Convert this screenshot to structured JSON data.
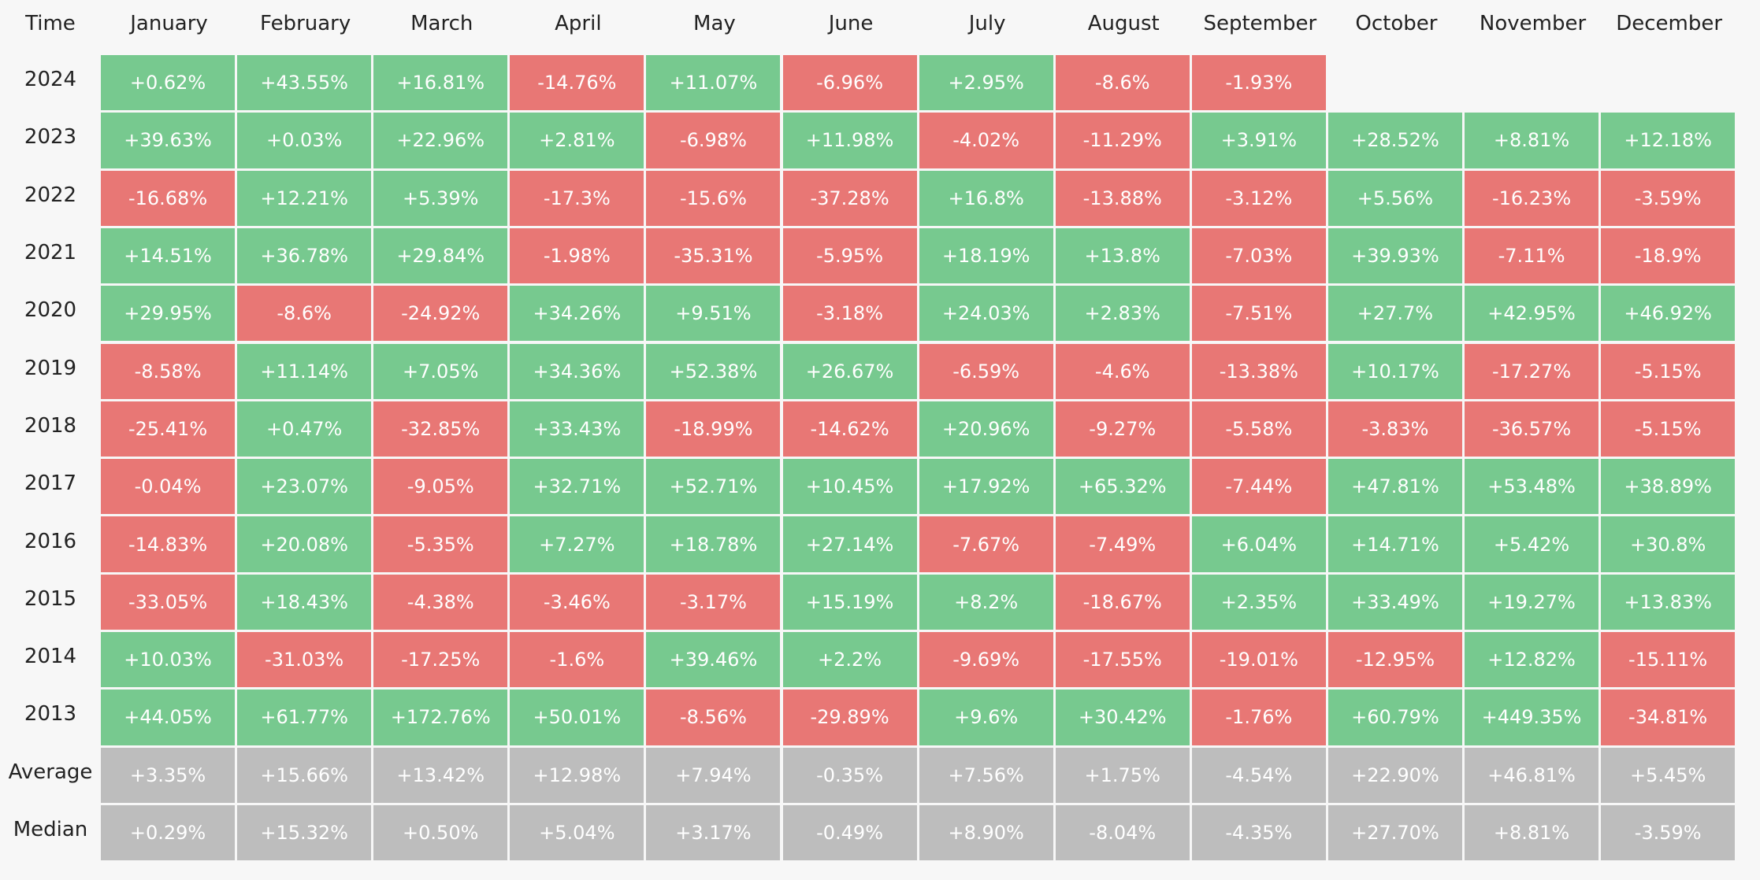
{
  "table": {
    "columns": [
      "Time",
      "January",
      "February",
      "March",
      "April",
      "May",
      "June",
      "July",
      "August",
      "September",
      "October",
      "November",
      "December"
    ],
    "rows": [
      [
        "2024",
        "+0.62%",
        "+43.55%",
        "+16.81%",
        "-14.76%",
        "+11.07%",
        "-6.96%",
        "+2.95%",
        "-8.6%",
        "-1.93%"
      ],
      [
        "2023",
        "+39.63%",
        "+0.03%",
        "+22.96%",
        "+2.81%",
        "-6.98%",
        "+11.98%",
        "-4.02%",
        "-11.29%",
        "+3.91%",
        "+28.52%",
        "+8.81%",
        "+12.18%"
      ],
      [
        "2022",
        "-16.68%",
        "+12.21%",
        "+5.39%",
        "-17.3%",
        "-15.6%",
        "-37.28%",
        "+16.8%",
        "-13.88%",
        "-3.12%",
        "+5.56%",
        "-16.23%",
        "-3.59%"
      ],
      [
        "2021",
        "+14.51%",
        "+36.78%",
        "+29.84%",
        "-1.98%",
        "-35.31%",
        "-5.95%",
        "+18.19%",
        "+13.8%",
        "-7.03%",
        "+39.93%",
        "-7.11%",
        "-18.9%"
      ],
      [
        "2020",
        "+29.95%",
        "-8.6%",
        "-24.92%",
        "+34.26%",
        "+9.51%",
        "-3.18%",
        "+24.03%",
        "+2.83%",
        "-7.51%",
        "+27.7%",
        "+42.95%",
        "+46.92%"
      ],
      [
        "2019",
        "-8.58%",
        "+11.14%",
        "+7.05%",
        "+34.36%",
        "+52.38%",
        "+26.67%",
        "-6.59%",
        "-4.6%",
        "-13.38%",
        "+10.17%",
        "-17.27%",
        "-5.15%"
      ],
      [
        "2018",
        "-25.41%",
        "+0.47%",
        "-32.85%",
        "+33.43%",
        "-18.99%",
        "-14.62%",
        "+20.96%",
        "-9.27%",
        "-5.58%",
        "-3.83%",
        "-36.57%",
        "-5.15%"
      ],
      [
        "2017",
        "-0.04%",
        "+23.07%",
        "-9.05%",
        "+32.71%",
        "+52.71%",
        "+10.45%",
        "+17.92%",
        "+65.32%",
        "-7.44%",
        "+47.81%",
        "+53.48%",
        "+38.89%"
      ],
      [
        "2016",
        "-14.83%",
        "+20.08%",
        "-5.35%",
        "+7.27%",
        "+18.78%",
        "+27.14%",
        "-7.67%",
        "-7.49%",
        "+6.04%",
        "+14.71%",
        "+5.42%",
        "+30.8%"
      ],
      [
        "2015",
        "-33.05%",
        "+18.43%",
        "-4.38%",
        "-3.46%",
        "-3.17%",
        "+15.19%",
        "+8.2%",
        "-18.67%",
        "+2.35%",
        "+33.49%",
        "+19.27%",
        "+13.83%"
      ],
      [
        "2014",
        "+10.03%",
        "-31.03%",
        "-17.25%",
        "-1.6%",
        "+39.46%",
        "+2.2%",
        "-9.69%",
        "-17.55%",
        "-19.01%",
        "-12.95%",
        "+12.82%",
        "-15.11%"
      ],
      [
        "2013",
        "+44.05%",
        "+61.77%",
        "+172.76%",
        "+50.01%",
        "-8.56%",
        "-29.89%",
        "+9.6%",
        "+30.42%",
        "-1.76%",
        "+60.79%",
        "+449.35%",
        "-34.81%"
      ]
    ],
    "summary_rows": [
      [
        "Average",
        "+3.35%",
        "+15.66%",
        "+13.42%",
        "+12.98%",
        "+7.94%",
        "-0.35%",
        "+7.56%",
        "+1.75%",
        "-4.54%",
        "+22.90%",
        "+46.81%",
        "+5.45%"
      ],
      [
        "Median",
        "+0.29%",
        "+15.32%",
        "+0.50%",
        "+5.04%",
        "+3.17%",
        "-0.49%",
        "+8.90%",
        "-8.04%",
        "-4.35%",
        "+27.70%",
        "+8.81%",
        "-3.59%"
      ]
    ],
    "colors": {
      "up": "#77c98f",
      "down": "#e87775",
      "summary": "#bdbdbd"
    }
  }
}
